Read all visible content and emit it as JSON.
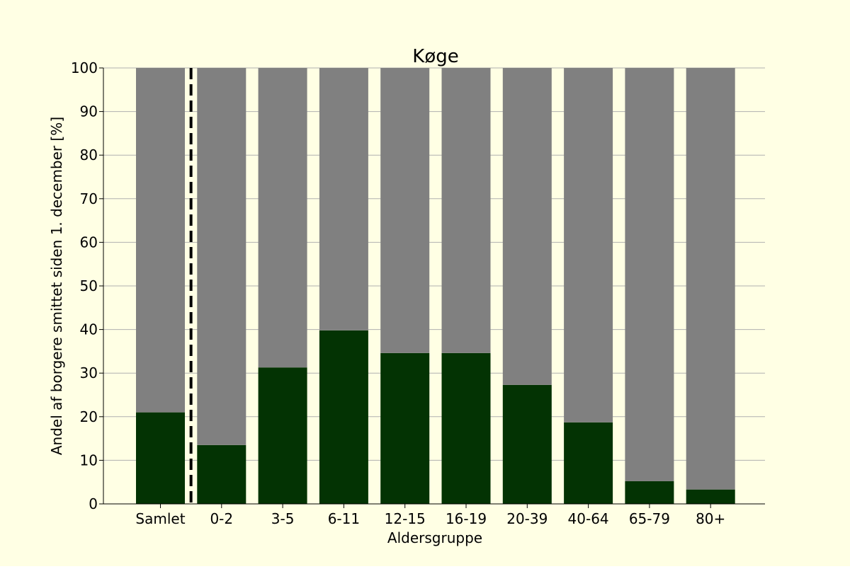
{
  "chart_data": {
    "type": "bar",
    "stacked": true,
    "title": "Køge",
    "xlabel": "Aldersgruppe",
    "ylabel": "Andel af borgere smittet siden 1. december [%]",
    "categories": [
      "Samlet",
      "0-2",
      "3-5",
      "6-11",
      "12-15",
      "16-19",
      "20-39",
      "40-64",
      "65-79",
      "80+"
    ],
    "series": [
      {
        "values": [
          21.0,
          13.5,
          31.3,
          39.8,
          34.6,
          34.6,
          27.3,
          18.7,
          5.2,
          3.3
        ]
      },
      {
        "values": [
          79.0,
          86.5,
          68.7,
          60.2,
          65.4,
          65.4,
          72.7,
          81.3,
          94.8,
          96.7
        ]
      }
    ],
    "ylim": [
      0,
      100
    ],
    "yticks": [
      0,
      10,
      20,
      30,
      40,
      50,
      60,
      70,
      80,
      90,
      100
    ],
    "grid": "horizontal",
    "separator_after": "Samlet",
    "legend": "none"
  },
  "colors": {
    "background": "#ffffe4",
    "infected": "#033303",
    "remaining": "#808080",
    "grid": "#b0b0b0",
    "axis": "#000000"
  }
}
